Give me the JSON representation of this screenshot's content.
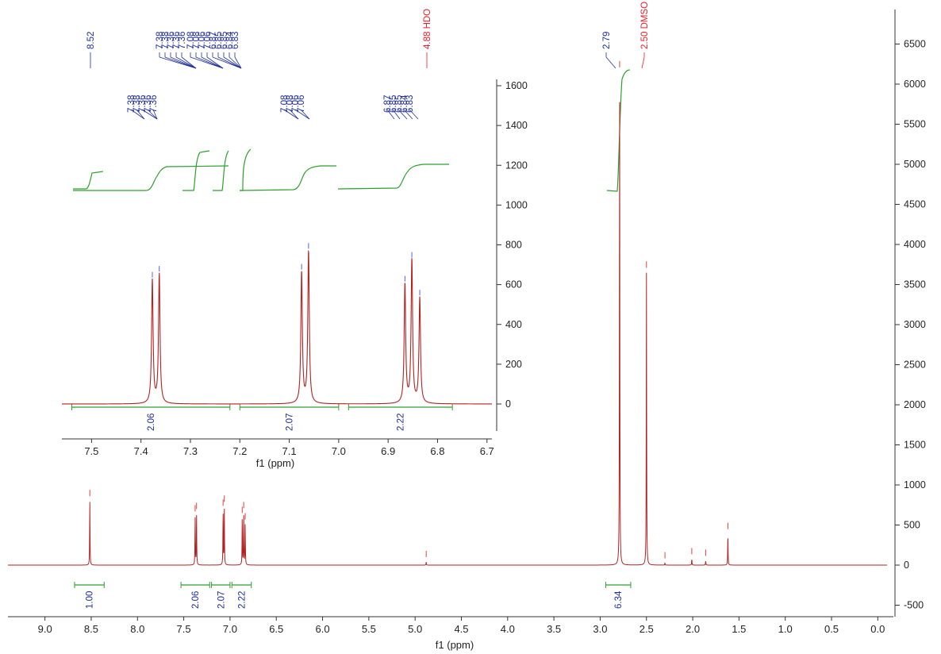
{
  "colors": {
    "spectrum": "#b22222",
    "integral": "#2ca02c",
    "peak_label": "#1f2f9a",
    "solvent_label": "#e8202a",
    "axis": "#333333"
  },
  "chart_data": [
    {
      "type": "line",
      "name": "main",
      "xlabel": "f1 (ppm)",
      "x_reversed": true,
      "xlim": [
        9.4,
        -0.1
      ],
      "x_ticks": [
        9.0,
        8.5,
        8.0,
        7.5,
        7.0,
        6.5,
        6.0,
        5.5,
        5.0,
        4.5,
        4.0,
        3.5,
        3.0,
        2.5,
        2.0,
        1.5,
        1.0,
        0.5,
        0.0
      ],
      "ylim": [
        -600,
        6700
      ],
      "y_ticks": [
        6500,
        6000,
        5500,
        5000,
        4500,
        4000,
        3500,
        3000,
        2500,
        2000,
        1500,
        1000,
        500,
        0,
        -500
      ],
      "y_axis_side": "right",
      "peaks": [
        {
          "x": 8.515,
          "y": 800
        },
        {
          "x": 7.377,
          "y": 610
        },
        {
          "x": 7.362,
          "y": 640
        },
        {
          "x": 7.075,
          "y": 680
        },
        {
          "x": 7.062,
          "y": 730
        },
        {
          "x": 6.868,
          "y": 590
        },
        {
          "x": 6.852,
          "y": 650
        },
        {
          "x": 6.836,
          "y": 510
        },
        {
          "x": 4.88,
          "y": 40
        },
        {
          "x": 2.79,
          "y": 6150
        },
        {
          "x": 2.5,
          "y": 3650
        },
        {
          "x": 2.3,
          "y": 25
        },
        {
          "x": 2.01,
          "y": 75
        },
        {
          "x": 1.86,
          "y": 55
        },
        {
          "x": 1.62,
          "y": 390
        }
      ],
      "peak_labels_top": [
        {
          "text": "8.52",
          "kind": "peak"
        },
        {
          "text": "7.38",
          "kind": "peak"
        },
        {
          "text": "7.38",
          "kind": "peak"
        },
        {
          "text": "7.36",
          "kind": "peak"
        },
        {
          "text": "7.36",
          "kind": "peak"
        },
        {
          "text": "7.36",
          "kind": "peak"
        },
        {
          "text": "7.08",
          "kind": "peak"
        },
        {
          "text": "7.08",
          "kind": "peak"
        },
        {
          "text": "7.06",
          "kind": "peak"
        },
        {
          "text": "7.06",
          "kind": "peak"
        },
        {
          "text": "6.87",
          "kind": "peak"
        },
        {
          "text": "6.85",
          "kind": "peak"
        },
        {
          "text": "6.85",
          "kind": "peak"
        },
        {
          "text": "6.84",
          "kind": "peak"
        },
        {
          "text": "6.83",
          "kind": "peak"
        },
        {
          "text": "4.88 HDO",
          "kind": "solvent"
        },
        {
          "text": "2.79",
          "kind": "peak"
        },
        {
          "text": "2.50 DMSO",
          "kind": "solvent"
        }
      ],
      "integrals": [
        {
          "from": 8.68,
          "to": 8.36,
          "value": "1.00"
        },
        {
          "from": 7.53,
          "to": 7.22,
          "value": "2.06"
        },
        {
          "from": 7.2,
          "to": 7.0,
          "value": "2.07"
        },
        {
          "from": 6.98,
          "to": 6.77,
          "value": "2.22"
        },
        {
          "from": 2.94,
          "to": 2.67,
          "value": "6.34"
        }
      ]
    },
    {
      "type": "line",
      "name": "inset",
      "xlabel": "f1 (ppm)",
      "x_reversed": true,
      "xlim": [
        7.56,
        6.69
      ],
      "x_ticks": [
        7.5,
        7.4,
        7.3,
        7.2,
        7.1,
        7.0,
        6.9,
        6.8,
        6.7
      ],
      "ylim": [
        -200,
        1650
      ],
      "y_ticks": [
        1600,
        1400,
        1200,
        1000,
        800,
        600,
        400,
        200,
        0
      ],
      "peaks": [
        {
          "x": 7.377,
          "y": 620
        },
        {
          "x": 7.363,
          "y": 650
        },
        {
          "x": 7.075,
          "y": 660
        },
        {
          "x": 7.061,
          "y": 765
        },
        {
          "x": 6.866,
          "y": 600
        },
        {
          "x": 6.852,
          "y": 720
        },
        {
          "x": 6.836,
          "y": 530
        }
      ],
      "peak_labels_top": [
        "7.38",
        "7.38",
        "7.36",
        "7.36",
        "7.36",
        "7.08",
        "7.08",
        "7.06",
        "7.06",
        "6.87",
        "6.85",
        "6.85",
        "6.84",
        "6.83"
      ],
      "integrals": [
        {
          "from": 7.54,
          "to": 7.22,
          "value": "2.06"
        },
        {
          "from": 7.2,
          "to": 7.0,
          "value": "2.07"
        },
        {
          "from": 6.98,
          "to": 6.77,
          "value": "2.22"
        }
      ]
    }
  ]
}
